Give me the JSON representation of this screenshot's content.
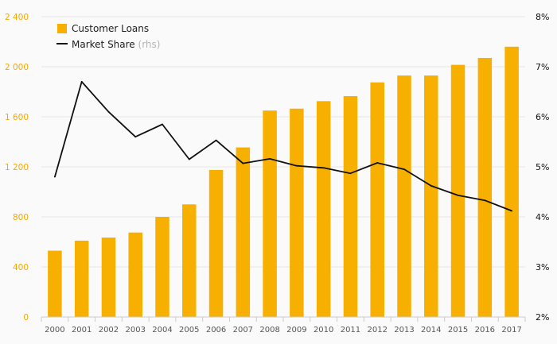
{
  "colors": {
    "bar": "#f7b000",
    "line": "#111111",
    "left_axis": "#f5a800",
    "grid": "#e6e6e6",
    "background": "#fafafa"
  },
  "legend": {
    "loans_label": "Customer Loans",
    "share_label": "Market Share",
    "share_suffix": "(rhs)",
    "placement": "top-left"
  },
  "chart_data": {
    "type": "bar",
    "categories": [
      "2000",
      "2001",
      "2002",
      "2003",
      "2004",
      "2005",
      "2006",
      "2007",
      "2008",
      "2009",
      "2010",
      "2011",
      "2012",
      "2013",
      "2014",
      "2015",
      "2016",
      "2017"
    ],
    "series": [
      {
        "name": "Customer Loans",
        "type": "bar",
        "axis": "left",
        "values": [
          530,
          610,
          635,
          675,
          800,
          900,
          1175,
          1355,
          1650,
          1665,
          1725,
          1765,
          1875,
          1930,
          1930,
          2015,
          2070,
          2160
        ]
      },
      {
        "name": "Market Share",
        "type": "line",
        "axis": "right",
        "values": [
          4.8,
          6.7,
          6.1,
          5.6,
          5.85,
          5.15,
          5.53,
          5.07,
          5.16,
          5.02,
          4.98,
          4.87,
          5.08,
          4.95,
          4.62,
          4.43,
          4.33,
          4.12
        ]
      }
    ],
    "left_axis": {
      "ylim": [
        0,
        2400
      ],
      "ticks": [
        0,
        400,
        800,
        1200,
        1600,
        2000,
        2400
      ],
      "tick_labels": [
        "0",
        "400",
        "800",
        "1 200",
        "1 600",
        "2 000",
        "2 400"
      ]
    },
    "right_axis": {
      "ylim": [
        2,
        8
      ],
      "ticks": [
        2,
        3,
        4,
        5,
        6,
        7,
        8
      ],
      "tick_labels": [
        "2%",
        "3%",
        "4%",
        "5%",
        "6%",
        "7%",
        "8%"
      ]
    },
    "grid": true
  }
}
